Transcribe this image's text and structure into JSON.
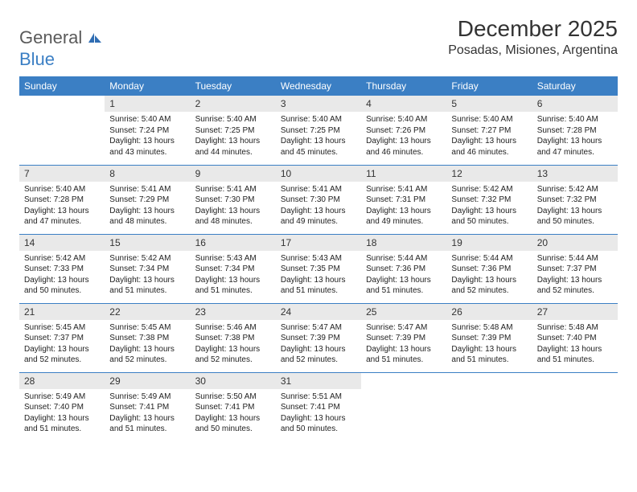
{
  "brand": {
    "part1": "General",
    "part2": "Blue"
  },
  "title": "December 2025",
  "location": "Posadas, Misiones, Argentina",
  "colors": {
    "header_bg": "#3b7fc4",
    "header_fg": "#ffffff",
    "daynum_bg": "#e9e9e9",
    "text": "#222222",
    "rule": "#3b7fc4",
    "logo_gray": "#5a5a5a"
  },
  "weekdays": [
    "Sunday",
    "Monday",
    "Tuesday",
    "Wednesday",
    "Thursday",
    "Friday",
    "Saturday"
  ],
  "weeks": [
    [
      {
        "empty": true
      },
      {
        "n": "1",
        "sr": "Sunrise: 5:40 AM",
        "ss": "Sunset: 7:24 PM",
        "d1": "Daylight: 13 hours",
        "d2": "and 43 minutes."
      },
      {
        "n": "2",
        "sr": "Sunrise: 5:40 AM",
        "ss": "Sunset: 7:25 PM",
        "d1": "Daylight: 13 hours",
        "d2": "and 44 minutes."
      },
      {
        "n": "3",
        "sr": "Sunrise: 5:40 AM",
        "ss": "Sunset: 7:25 PM",
        "d1": "Daylight: 13 hours",
        "d2": "and 45 minutes."
      },
      {
        "n": "4",
        "sr": "Sunrise: 5:40 AM",
        "ss": "Sunset: 7:26 PM",
        "d1": "Daylight: 13 hours",
        "d2": "and 46 minutes."
      },
      {
        "n": "5",
        "sr": "Sunrise: 5:40 AM",
        "ss": "Sunset: 7:27 PM",
        "d1": "Daylight: 13 hours",
        "d2": "and 46 minutes."
      },
      {
        "n": "6",
        "sr": "Sunrise: 5:40 AM",
        "ss": "Sunset: 7:28 PM",
        "d1": "Daylight: 13 hours",
        "d2": "and 47 minutes."
      }
    ],
    [
      {
        "n": "7",
        "sr": "Sunrise: 5:40 AM",
        "ss": "Sunset: 7:28 PM",
        "d1": "Daylight: 13 hours",
        "d2": "and 47 minutes."
      },
      {
        "n": "8",
        "sr": "Sunrise: 5:41 AM",
        "ss": "Sunset: 7:29 PM",
        "d1": "Daylight: 13 hours",
        "d2": "and 48 minutes."
      },
      {
        "n": "9",
        "sr": "Sunrise: 5:41 AM",
        "ss": "Sunset: 7:30 PM",
        "d1": "Daylight: 13 hours",
        "d2": "and 48 minutes."
      },
      {
        "n": "10",
        "sr": "Sunrise: 5:41 AM",
        "ss": "Sunset: 7:30 PM",
        "d1": "Daylight: 13 hours",
        "d2": "and 49 minutes."
      },
      {
        "n": "11",
        "sr": "Sunrise: 5:41 AM",
        "ss": "Sunset: 7:31 PM",
        "d1": "Daylight: 13 hours",
        "d2": "and 49 minutes."
      },
      {
        "n": "12",
        "sr": "Sunrise: 5:42 AM",
        "ss": "Sunset: 7:32 PM",
        "d1": "Daylight: 13 hours",
        "d2": "and 50 minutes."
      },
      {
        "n": "13",
        "sr": "Sunrise: 5:42 AM",
        "ss": "Sunset: 7:32 PM",
        "d1": "Daylight: 13 hours",
        "d2": "and 50 minutes."
      }
    ],
    [
      {
        "n": "14",
        "sr": "Sunrise: 5:42 AM",
        "ss": "Sunset: 7:33 PM",
        "d1": "Daylight: 13 hours",
        "d2": "and 50 minutes."
      },
      {
        "n": "15",
        "sr": "Sunrise: 5:42 AM",
        "ss": "Sunset: 7:34 PM",
        "d1": "Daylight: 13 hours",
        "d2": "and 51 minutes."
      },
      {
        "n": "16",
        "sr": "Sunrise: 5:43 AM",
        "ss": "Sunset: 7:34 PM",
        "d1": "Daylight: 13 hours",
        "d2": "and 51 minutes."
      },
      {
        "n": "17",
        "sr": "Sunrise: 5:43 AM",
        "ss": "Sunset: 7:35 PM",
        "d1": "Daylight: 13 hours",
        "d2": "and 51 minutes."
      },
      {
        "n": "18",
        "sr": "Sunrise: 5:44 AM",
        "ss": "Sunset: 7:36 PM",
        "d1": "Daylight: 13 hours",
        "d2": "and 51 minutes."
      },
      {
        "n": "19",
        "sr": "Sunrise: 5:44 AM",
        "ss": "Sunset: 7:36 PM",
        "d1": "Daylight: 13 hours",
        "d2": "and 52 minutes."
      },
      {
        "n": "20",
        "sr": "Sunrise: 5:44 AM",
        "ss": "Sunset: 7:37 PM",
        "d1": "Daylight: 13 hours",
        "d2": "and 52 minutes."
      }
    ],
    [
      {
        "n": "21",
        "sr": "Sunrise: 5:45 AM",
        "ss": "Sunset: 7:37 PM",
        "d1": "Daylight: 13 hours",
        "d2": "and 52 minutes."
      },
      {
        "n": "22",
        "sr": "Sunrise: 5:45 AM",
        "ss": "Sunset: 7:38 PM",
        "d1": "Daylight: 13 hours",
        "d2": "and 52 minutes."
      },
      {
        "n": "23",
        "sr": "Sunrise: 5:46 AM",
        "ss": "Sunset: 7:38 PM",
        "d1": "Daylight: 13 hours",
        "d2": "and 52 minutes."
      },
      {
        "n": "24",
        "sr": "Sunrise: 5:47 AM",
        "ss": "Sunset: 7:39 PM",
        "d1": "Daylight: 13 hours",
        "d2": "and 52 minutes."
      },
      {
        "n": "25",
        "sr": "Sunrise: 5:47 AM",
        "ss": "Sunset: 7:39 PM",
        "d1": "Daylight: 13 hours",
        "d2": "and 51 minutes."
      },
      {
        "n": "26",
        "sr": "Sunrise: 5:48 AM",
        "ss": "Sunset: 7:39 PM",
        "d1": "Daylight: 13 hours",
        "d2": "and 51 minutes."
      },
      {
        "n": "27",
        "sr": "Sunrise: 5:48 AM",
        "ss": "Sunset: 7:40 PM",
        "d1": "Daylight: 13 hours",
        "d2": "and 51 minutes."
      }
    ],
    [
      {
        "n": "28",
        "sr": "Sunrise: 5:49 AM",
        "ss": "Sunset: 7:40 PM",
        "d1": "Daylight: 13 hours",
        "d2": "and 51 minutes."
      },
      {
        "n": "29",
        "sr": "Sunrise: 5:49 AM",
        "ss": "Sunset: 7:41 PM",
        "d1": "Daylight: 13 hours",
        "d2": "and 51 minutes."
      },
      {
        "n": "30",
        "sr": "Sunrise: 5:50 AM",
        "ss": "Sunset: 7:41 PM",
        "d1": "Daylight: 13 hours",
        "d2": "and 50 minutes."
      },
      {
        "n": "31",
        "sr": "Sunrise: 5:51 AM",
        "ss": "Sunset: 7:41 PM",
        "d1": "Daylight: 13 hours",
        "d2": "and 50 minutes."
      },
      {
        "empty": true
      },
      {
        "empty": true
      },
      {
        "empty": true
      }
    ]
  ]
}
